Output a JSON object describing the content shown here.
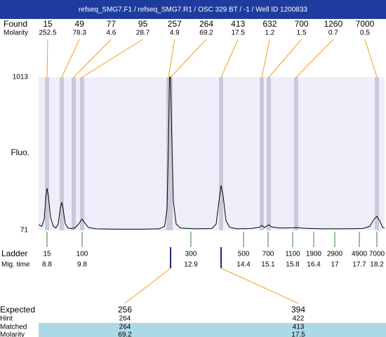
{
  "header": {
    "title": "refseq_SMG7.F1 / refseq_SMG7.R1 / OSC 329 BT / -1 / Well ID 1200833"
  },
  "chart_data": {
    "type": "electropherogram",
    "ylabel": "Fluo.",
    "ylim": [
      71,
      1013
    ],
    "yticks": [
      71,
      1013
    ],
    "xlim": [
      8.56,
      18.42
    ],
    "found": {
      "label": "Found",
      "molarity_label": "Molarity",
      "color": "#f0a020",
      "band_color": "#c9c9d9",
      "peaks": [
        {
          "size": 15,
          "molarity": 252.5,
          "time": 8.8
        },
        {
          "size": 49,
          "molarity": 78.3,
          "time": 9.22
        },
        {
          "size": 77,
          "molarity": 4.6,
          "time": 9.56
        },
        {
          "size": 95,
          "molarity": 28.7,
          "time": 9.8
        },
        {
          "size": 257,
          "molarity": 4.9,
          "time": 12.26
        },
        {
          "size": 264,
          "molarity": 69.2,
          "time": 12.32
        },
        {
          "size": 413,
          "molarity": 17.5,
          "time": 13.76
        },
        {
          "size": 632,
          "molarity": 1.2,
          "time": 14.92
        },
        {
          "size": 700,
          "molarity": 1.5,
          "time": 15.12
        },
        {
          "size": 1260,
          "molarity": 0.7,
          "time": 15.9
        },
        {
          "size": 7000,
          "molarity": 0.5,
          "time": 18.2
        }
      ]
    },
    "trace": {
      "color": "#000000",
      "x": [
        8.56,
        8.65,
        8.72,
        8.77,
        8.8,
        8.84,
        8.9,
        8.98,
        9.05,
        9.12,
        9.18,
        9.22,
        9.26,
        9.32,
        9.4,
        9.5,
        9.6,
        9.7,
        9.8,
        9.88,
        9.98,
        10.2,
        10.8,
        11.5,
        12.0,
        12.15,
        12.22,
        12.26,
        12.29,
        12.32,
        12.35,
        12.4,
        12.48,
        12.6,
        13.0,
        13.5,
        13.62,
        13.7,
        13.76,
        13.82,
        13.9,
        14.0,
        14.2,
        14.6,
        14.85,
        14.92,
        15.0,
        15.12,
        15.2,
        15.4,
        15.8,
        15.9,
        16.1,
        16.6,
        17.2,
        17.8,
        18.0,
        18.12,
        18.2,
        18.28,
        18.36,
        18.42
      ],
      "values": [
        105,
        95,
        140,
        280,
        330,
        280,
        150,
        95,
        85,
        110,
        210,
        244,
        200,
        110,
        85,
        82,
        86,
        110,
        140,
        115,
        88,
        80,
        78,
        78,
        80,
        95,
        200,
        600,
        1013,
        1013,
        700,
        250,
        110,
        85,
        80,
        82,
        110,
        250,
        347,
        280,
        130,
        90,
        80,
        82,
        90,
        101,
        88,
        105,
        92,
        85,
        86,
        88,
        84,
        80,
        80,
        82,
        95,
        140,
        157,
        130,
        90,
        85
      ]
    },
    "ladder": {
      "label": "Ladder",
      "time_label": "Mig. time",
      "color": "#2e8b2e",
      "sizes": [
        15,
        100,
        300,
        500,
        700,
        1100,
        1900,
        2900,
        4900,
        7000
      ],
      "times": [
        8.8,
        9.8,
        12.9,
        14.4,
        15.1,
        15.8,
        16.4,
        17,
        17.7,
        18.2
      ]
    },
    "expected": {
      "labels": [
        "Expected",
        "Hint",
        "Matched",
        "Molarity"
      ],
      "color": "#1a2a80",
      "row_color": "#add8e6",
      "columns": [
        {
          "expected": 256,
          "hint": 264,
          "matched": 264,
          "molarity": 69.2
        },
        {
          "expected": 394,
          "hint": 422,
          "matched": 413,
          "molarity": 17.5
        }
      ]
    }
  }
}
